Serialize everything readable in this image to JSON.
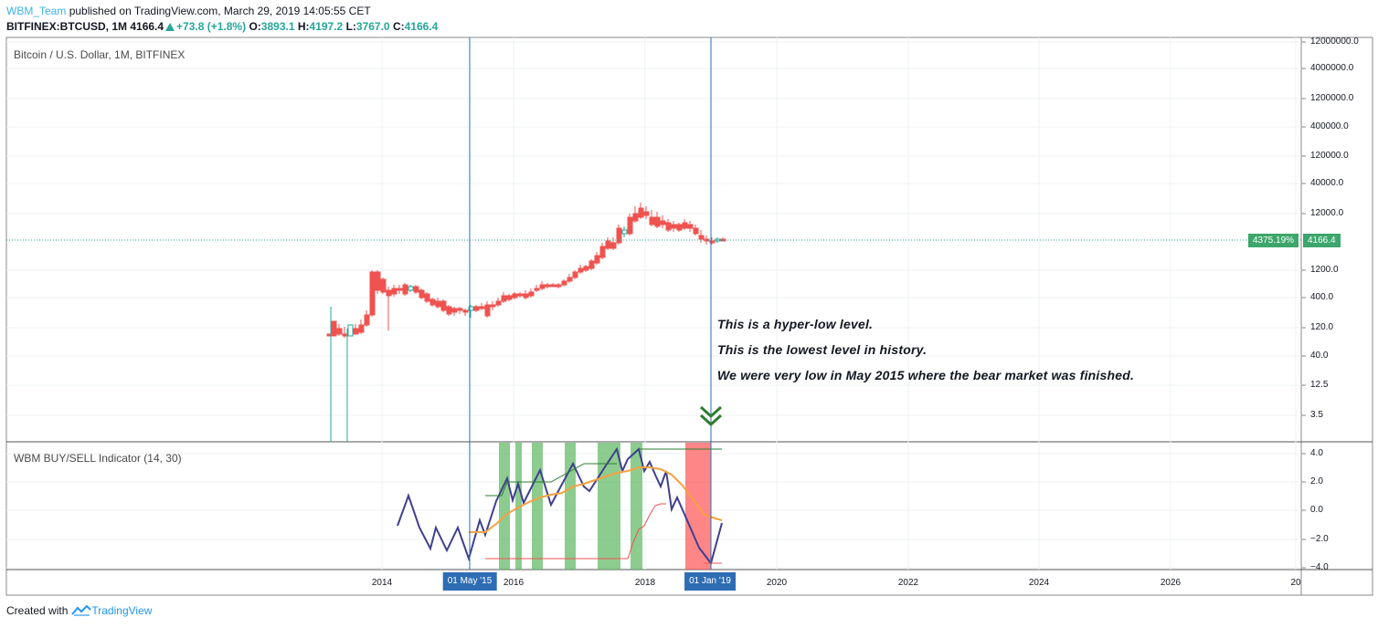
{
  "header": {
    "author": "WBM_Team",
    "published": "published on TradingView.com, March 29, 2019 14:05:55 CET",
    "symbol": "BITFINEX:BTCUSD, 1M",
    "last": "4166.4",
    "change": "+73.8 (+1.8%)",
    "o_label": "O:",
    "o": "3893.1",
    "h_label": "H:",
    "h": "4197.2",
    "l_label": "L:",
    "l": "3767.0",
    "c_label": "C:",
    "c": "4166.4"
  },
  "main_pane": {
    "title": "Bitcoin / U.S. Dollar, 1M, BITFINEX",
    "y_ticks": [
      "12000000.0",
      "4000000.0",
      "1200000.0",
      "400000.0",
      "120000.0",
      "40000.0",
      "12000.0",
      "1200.0",
      "400.0",
      "120.0",
      "40.0",
      "12.5",
      "3.5"
    ],
    "last_price_label": "4166.4",
    "percent_label": "4375.19%",
    "price_line_color": "#26a69a"
  },
  "annotations": [
    "This is a hyper-low level.",
    "This is the lowest level in history.",
    "We were very low in May 2015 where the bear market was finished."
  ],
  "indicator_pane": {
    "title": "WBM BUY/SELL Indicator (14, 30)",
    "y_ticks": [
      "4.0",
      "2.0",
      "0.0",
      "−2.0",
      "−4.0"
    ],
    "buy_color": "#66bb6a",
    "sell_color": "#ff5252"
  },
  "x_axis": {
    "ticks": [
      "2014",
      "2016",
      "2018",
      "2020",
      "2022",
      "2024",
      "2026",
      "20"
    ],
    "highlight_1": "01 May '15",
    "highlight_2": "01 Jan '19"
  },
  "footer": {
    "created_with": "Created with",
    "brand": "TradingView"
  },
  "icons": {
    "double_chevron": "double-chevron-down-icon",
    "tv_logo": "tradingview-logo-icon"
  }
}
